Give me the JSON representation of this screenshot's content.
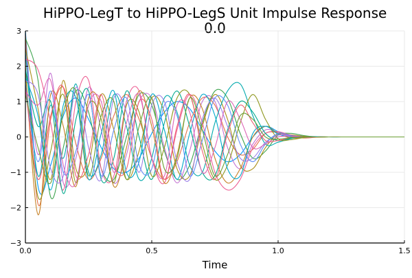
{
  "chart_data": {
    "type": "line",
    "title": "HiPPO-LegT to HiPPO-LegS Unit Impulse Response",
    "subtitle": "0.0",
    "xlabel": "Time",
    "ylabel": "",
    "xlim": [
      0.0,
      1.5
    ],
    "ylim": [
      -3,
      3
    ],
    "xticks": [
      0.0,
      0.5,
      1.0,
      1.5
    ],
    "xtick_labels": [
      "0.0",
      "0.5",
      "1.0",
      "1.5"
    ],
    "yticks": [
      -3,
      -2,
      -1,
      0,
      1,
      2,
      3
    ],
    "ytick_labels": [
      "−3",
      "−2",
      "−1",
      "0",
      "1",
      "2",
      "3"
    ],
    "grid": true,
    "legend": "none",
    "x_sample_step": 0.05,
    "series": [
      {
        "color": "#009AFA",
        "values": [
          3.0,
          -1.4,
          -0.8,
          0.6,
          1.1,
          0.5,
          -0.3,
          -0.9,
          -1.0,
          -0.6,
          0.1,
          0.7,
          1.0,
          0.8,
          0.2,
          -0.4,
          -0.7,
          -0.5,
          0.0,
          0.3,
          0.15,
          0.05,
          0.02,
          0.01,
          0.0,
          0.0,
          0.0,
          0.0,
          0.0,
          0.0,
          0.0
        ]
      },
      {
        "color": "#E36F47",
        "values": [
          2.9,
          -1.9,
          0.5,
          1.4,
          -0.2,
          -1.2,
          -0.6,
          0.6,
          1.2,
          0.5,
          -0.6,
          -1.2,
          -0.7,
          0.4,
          1.1,
          0.9,
          0.0,
          -0.5,
          -0.35,
          0.1,
          0.12,
          0.02,
          -0.03,
          -0.01,
          0.0,
          0.0,
          0.0,
          0.0,
          0.0,
          0.0,
          0.0
        ]
      },
      {
        "color": "#3EA44E",
        "values": [
          2.8,
          1.6,
          -1.7,
          -0.3,
          1.3,
          0.7,
          -0.9,
          -1.2,
          0.0,
          1.2,
          0.9,
          -0.4,
          -1.2,
          -0.8,
          0.4,
          1.3,
          1.1,
          0.1,
          -0.6,
          -0.4,
          0.05,
          0.1,
          0.04,
          0.0,
          0.0,
          0.0,
          0.0,
          0.0,
          0.0,
          0.0,
          0.0
        ]
      },
      {
        "color": "#C371D2",
        "values": [
          2.6,
          -0.5,
          1.8,
          -1.3,
          -0.6,
          1.4,
          0.2,
          -1.3,
          -0.5,
          1.0,
          1.1,
          -0.3,
          -1.3,
          -0.4,
          1.0,
          1.0,
          -0.3,
          -0.9,
          -0.2,
          0.2,
          0.12,
          0.0,
          -0.02,
          0.0,
          0.0,
          0.0,
          0.0,
          0.0,
          0.0,
          0.0,
          0.0
        ]
      },
      {
        "color": "#AC8E18",
        "values": [
          2.5,
          0.8,
          -1.2,
          1.6,
          -0.9,
          -0.8,
          1.2,
          0.2,
          -1.2,
          -0.4,
          1.1,
          0.7,
          -0.9,
          -1.1,
          0.3,
          1.2,
          0.5,
          -0.8,
          -0.9,
          -0.3,
          0.08,
          0.06,
          0.02,
          0.0,
          0.0,
          0.0,
          0.0,
          0.0,
          0.0,
          0.0,
          0.0
        ]
      },
      {
        "color": "#00A9AD",
        "values": [
          2.4,
          -1.1,
          0.9,
          -0.6,
          1.5,
          -1.0,
          -0.5,
          1.2,
          0.3,
          -1.2,
          -0.6,
          1.1,
          0.7,
          -0.8,
          -1.0,
          0.4,
          1.3,
          1.5,
          0.6,
          -0.2,
          -0.15,
          -0.05,
          0.0,
          0.0,
          0.0,
          0.0,
          0.0,
          0.0,
          0.0,
          0.0,
          0.0
        ]
      },
      {
        "color": "#ED5E93",
        "values": [
          2.2,
          1.9,
          0.4,
          -1.5,
          1.0,
          1.6,
          -0.9,
          -1.1,
          1.0,
          1.3,
          -0.6,
          -1.3,
          0.2,
          1.2,
          0.4,
          -1.0,
          -1.5,
          -1.2,
          -0.3,
          0.1,
          0.15,
          0.05,
          0.0,
          0.0,
          0.0,
          0.0,
          0.0,
          0.0,
          0.0,
          0.0,
          0.0
        ]
      },
      {
        "color": "#C68125",
        "values": [
          2.0,
          -2.2,
          1.2,
          0.3,
          -1.4,
          1.1,
          0.8,
          -1.4,
          -0.3,
          1.3,
          0.3,
          -1.3,
          -0.5,
          1.1,
          0.8,
          -0.6,
          -1.3,
          -0.9,
          0.0,
          0.3,
          0.1,
          -0.03,
          -0.02,
          0.0,
          0.0,
          0.0,
          0.0,
          0.0,
          0.0,
          0.0,
          0.0
        ]
      },
      {
        "color": "#00A98D",
        "values": [
          1.9,
          0.3,
          1.0,
          -1.6,
          0.5,
          1.3,
          -1.2,
          -0.6,
          1.3,
          0.0,
          -1.2,
          0.4,
          1.3,
          0.3,
          -1.0,
          -1.1,
          0.2,
          1.0,
          0.7,
          0.1,
          -0.1,
          -0.04,
          0.0,
          0.0,
          0.0,
          0.0,
          0.0,
          0.0,
          0.0,
          0.0,
          0.0
        ]
      },
      {
        "color": "#8E971E",
        "values": [
          1.8,
          -1.7,
          -0.4,
          1.2,
          -1.3,
          0.9,
          0.5,
          -1.3,
          0.9,
          0.7,
          -1.1,
          -0.3,
          1.1,
          1.2,
          -0.2,
          -1.2,
          -0.8,
          0.4,
          1.2,
          0.5,
          -0.05,
          -0.08,
          -0.02,
          0.0,
          0.0,
          0.0,
          0.0,
          0.0,
          0.0,
          0.0,
          0.0
        ]
      },
      {
        "color": "#00A8CB",
        "values": [
          1.7,
          0.6,
          -1.5,
          0.9,
          1.1,
          -1.2,
          0.1,
          1.3,
          -1.0,
          -0.7,
          1.2,
          0.2,
          -1.2,
          0.1,
          1.2,
          0.6,
          -0.9,
          -1.1,
          0.1,
          0.3,
          0.08,
          0.0,
          0.0,
          0.0,
          0.0,
          0.0,
          0.0,
          0.0,
          0.0,
          0.0,
          0.0
        ]
      },
      {
        "color": "#9B7FE8",
        "values": [
          1.6,
          1.2,
          -0.9,
          -1.1,
          1.4,
          -0.3,
          -1.2,
          1.1,
          0.7,
          -1.0,
          0.9,
          1.0,
          -0.7,
          -1.2,
          0.5,
          1.1,
          0.3,
          -0.6,
          -0.6,
          -0.15,
          0.05,
          0.03,
          0.0,
          0.0,
          0.0,
          0.0,
          0.0,
          0.0,
          0.0,
          0.0,
          0.0
        ]
      },
      {
        "color": "#608CF6",
        "values": [
          1.5,
          -0.7,
          1.3,
          -1.0,
          -0.4,
          1.2,
          -1.1,
          0.2,
          1.1,
          -0.8,
          -0.9,
          0.9,
          0.6,
          -1.1,
          -0.1,
          1.1,
          0.9,
          -0.2,
          -0.7,
          -0.2,
          0.1,
          0.04,
          0.0,
          0.0,
          0.0,
          0.0,
          0.0,
          0.0,
          0.0,
          0.0,
          0.0
        ]
      },
      {
        "color": "#F05F73",
        "values": [
          1.4,
          -1.2,
          0.6,
          1.4,
          -1.1,
          -0.5,
          1.2,
          -0.8,
          -0.9,
          1.0,
          0.5,
          -1.2,
          0.3,
          1.2,
          -0.4,
          -1.2,
          0.1,
          0.9,
          0.4,
          -0.1,
          -0.1,
          -0.02,
          0.0,
          0.0,
          0.0,
          0.0,
          0.0,
          0.0,
          0.0,
          0.0,
          0.0
        ]
      },
      {
        "color": "#DD64B5",
        "values": [
          1.3,
          0.9,
          1.6,
          -0.8,
          -1.3,
          0.9,
          1.0,
          -1.0,
          0.4,
          1.2,
          -0.6,
          -1.1,
          0.9,
          0.7,
          -1.0,
          -0.3,
          1.0,
          0.5,
          -0.3,
          -0.2,
          0.0,
          0.02,
          0.0,
          0.0,
          0.0,
          0.0,
          0.0,
          0.0,
          0.0,
          0.0,
          0.0
        ]
      },
      {
        "color": "#6B9E32",
        "values": [
          1.2,
          -0.3,
          -1.3,
          0.7,
          1.3,
          -1.1,
          0.6,
          1.0,
          -1.2,
          0.3,
          1.1,
          -0.9,
          -0.6,
          1.1,
          0.2,
          -1.1,
          -0.5,
          0.6,
          0.5,
          0.0,
          -0.06,
          -0.02,
          0.0,
          0.0,
          0.0,
          0.0,
          0.0,
          0.0,
          0.0,
          0.0,
          0.0
        ]
      }
    ]
  }
}
